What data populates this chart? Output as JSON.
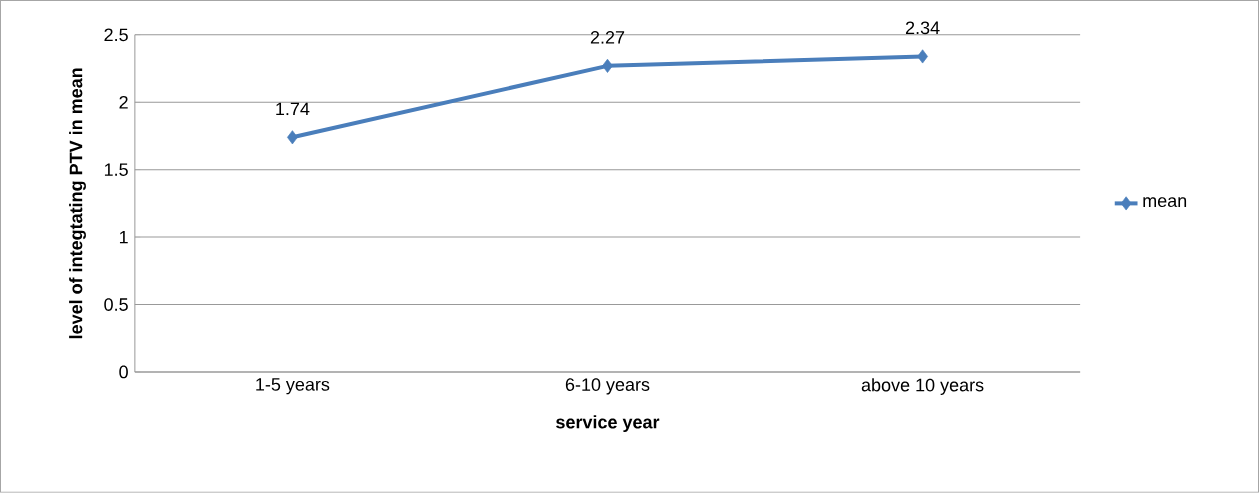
{
  "chart_data": {
    "type": "line",
    "xlabel": "service year",
    "ylabel": "level of integtating PTV in mean",
    "categories": [
      "1-5 years",
      "6-10 years",
      "above 10 years"
    ],
    "series": [
      {
        "name": "mean",
        "color": "#4a7ebb",
        "values": [
          1.74,
          2.27,
          2.34
        ]
      }
    ],
    "ylim": [
      0,
      2.5
    ],
    "yticks": [
      0,
      0.5,
      1,
      1.5,
      2,
      2.5
    ],
    "grid": "y",
    "legend": "right",
    "marker": "diamond",
    "line_style": "solid",
    "data_labels": true
  }
}
